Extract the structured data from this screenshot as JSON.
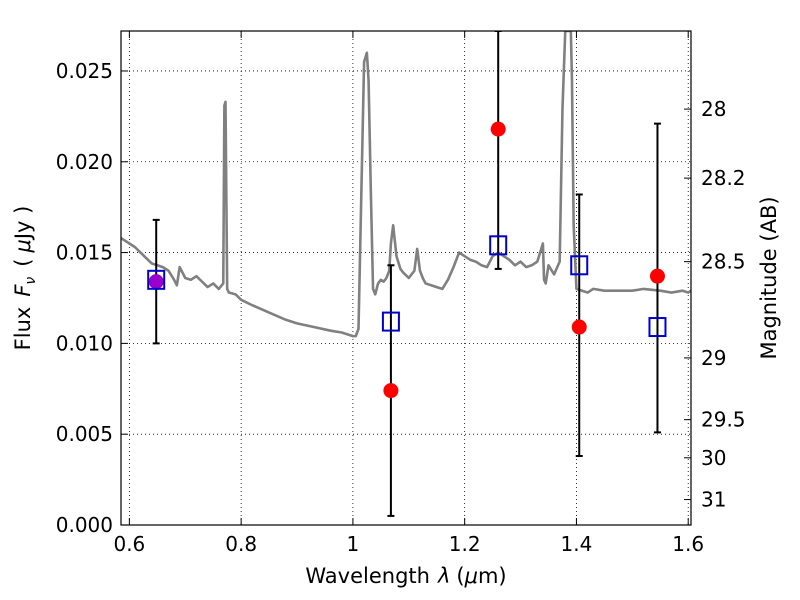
{
  "chart_data": {
    "type": "scatter",
    "xlabel_text": "Wavelength",
    "xlabel_symbol": "λ",
    "xlabel_unit_open": "(",
    "xlabel_unit_mu": "μ",
    "xlabel_unit_close": "m)",
    "ylabel_text": "Flux",
    "ylabel_symbol_main": "F",
    "ylabel_symbol_sub": "ν",
    "ylabel_unit_open": "(",
    "ylabel_unit_mu": "μ",
    "ylabel_unit_close": "Jy )",
    "y2label": "Magnitude (AB)",
    "xlim": [
      0.585,
      1.605
    ],
    "ylim": [
      0.0,
      0.0272
    ],
    "grid": true,
    "x_ticks": [
      0.6,
      0.8,
      1.0,
      1.2,
      1.4,
      1.6
    ],
    "x_tick_labels": [
      "0.6",
      "0.8",
      "1",
      "1.2",
      "1.4",
      "1.6"
    ],
    "y_ticks": [
      0.0,
      0.005,
      0.01,
      0.015,
      0.02,
      0.025
    ],
    "y_tick_labels": [
      "0.000",
      "0.005",
      "0.010",
      "0.015",
      "0.020",
      "0.025"
    ],
    "y2_ticks": [
      {
        "label": "28",
        "flux": 0.0229
      },
      {
        "label": "28.2",
        "flux": 0.0191
      },
      {
        "label": "28.5",
        "flux": 0.0145
      },
      {
        "label": "29",
        "flux": 0.0092
      },
      {
        "label": "29.5",
        "flux": 0.0058
      },
      {
        "label": "30",
        "flux": 0.0037
      },
      {
        "label": "31",
        "flux": 0.0014
      }
    ],
    "colors": {
      "model": "#808080",
      "observed": "#ff0000",
      "synthetic": "#0000cc",
      "errorbar": "#000000",
      "overlap": "#9900cc"
    },
    "series": [
      {
        "kind": "line",
        "x": [
          0.585,
          0.6,
          0.61,
          0.62,
          0.63,
          0.64,
          0.65,
          0.66,
          0.67,
          0.68,
          0.685,
          0.69,
          0.7,
          0.71,
          0.72,
          0.73,
          0.74,
          0.75,
          0.76,
          0.768,
          0.77,
          0.772,
          0.775,
          0.778,
          0.79,
          0.8,
          0.82,
          0.85,
          0.88,
          0.9,
          0.93,
          0.96,
          0.98,
          1.0,
          1.005,
          1.01,
          1.02,
          1.025,
          1.028,
          1.032,
          1.036,
          1.04,
          1.045,
          1.05,
          1.055,
          1.06,
          1.065,
          1.068,
          1.072,
          1.078,
          1.085,
          1.09,
          1.1,
          1.11,
          1.115,
          1.12,
          1.125,
          1.13,
          1.14,
          1.15,
          1.16,
          1.17,
          1.18,
          1.19,
          1.2,
          1.21,
          1.22,
          1.23,
          1.24,
          1.25,
          1.26,
          1.27,
          1.28,
          1.29,
          1.3,
          1.31,
          1.32,
          1.33,
          1.34,
          1.342,
          1.345,
          1.35,
          1.36,
          1.37,
          1.375,
          1.38,
          1.384,
          1.387,
          1.39,
          1.392,
          1.395,
          1.4,
          1.41,
          1.42,
          1.43,
          1.45,
          1.47,
          1.5,
          1.52,
          1.55,
          1.57,
          1.59,
          1.6,
          1.605
        ],
        "y": [
          0.0158,
          0.0155,
          0.0153,
          0.015,
          0.0147,
          0.0144,
          0.0143,
          0.0142,
          0.014,
          0.0135,
          0.0132,
          0.0142,
          0.0136,
          0.0135,
          0.0137,
          0.0134,
          0.0131,
          0.0133,
          0.013,
          0.0133,
          0.0231,
          0.0233,
          0.013,
          0.0128,
          0.0127,
          0.0124,
          0.0121,
          0.0117,
          0.0113,
          0.0111,
          0.0109,
          0.0107,
          0.0106,
          0.0104,
          0.0104,
          0.0108,
          0.0255,
          0.026,
          0.0245,
          0.0185,
          0.013,
          0.0127,
          0.0133,
          0.0135,
          0.0134,
          0.0136,
          0.014,
          0.0155,
          0.0165,
          0.0148,
          0.0141,
          0.0139,
          0.0136,
          0.014,
          0.0152,
          0.014,
          0.0136,
          0.0133,
          0.0132,
          0.0131,
          0.013,
          0.0135,
          0.0142,
          0.015,
          0.0148,
          0.0146,
          0.0145,
          0.0143,
          0.0142,
          0.0148,
          0.015,
          0.0148,
          0.0146,
          0.0143,
          0.0145,
          0.0142,
          0.0143,
          0.0145,
          0.0155,
          0.0135,
          0.0133,
          0.0143,
          0.0138,
          0.0145,
          0.0229,
          0.0272,
          0.0272,
          0.0272,
          0.0272,
          0.0245,
          0.0165,
          0.013,
          0.0129,
          0.0128,
          0.013,
          0.0129,
          0.0129,
          0.0129,
          0.013,
          0.0129,
          0.0128,
          0.0129,
          0.0128,
          0.0129
        ]
      },
      {
        "kind": "points",
        "name_visible": false,
        "x": [
          0.648,
          1.068,
          1.26,
          1.405,
          1.545
        ],
        "y": [
          0.0134,
          0.0074,
          0.0218,
          0.0109,
          0.0137
        ],
        "yerr_lower": [
          0.01,
          0.0005,
          0.0141,
          0.0038,
          0.0051
        ],
        "yerr_upper": [
          0.0168,
          0.0143,
          0.0272,
          0.0182,
          0.0221
        ]
      },
      {
        "kind": "squares",
        "x": [
          0.648,
          1.068,
          1.26,
          1.405,
          1.545
        ],
        "y": [
          0.0135,
          0.0112,
          0.0154,
          0.0143,
          0.0109
        ]
      }
    ]
  }
}
